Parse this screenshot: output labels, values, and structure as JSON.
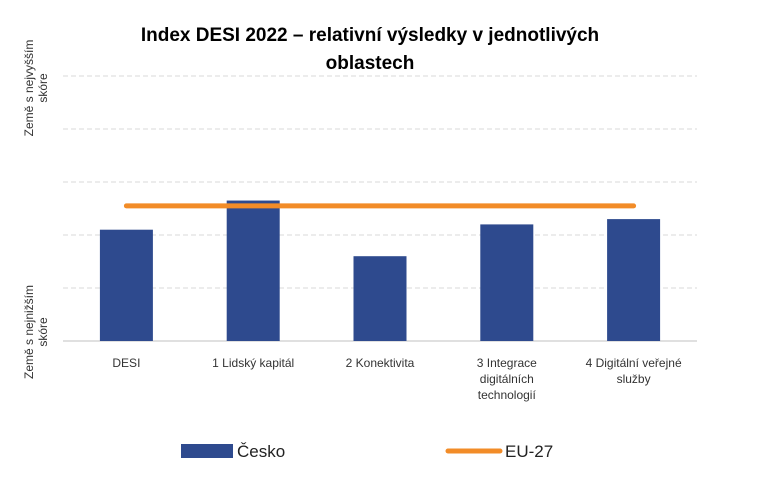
{
  "chart_data": {
    "type": "bar",
    "title_lines": [
      "Index DESI 2022 – relativní výsledky v jednotlivých",
      "oblastech"
    ],
    "ylabel_top": [
      "Země s nejvyšším",
      "skóre"
    ],
    "ylabel_bottom": [
      "Země s nejnižším",
      "skóre"
    ],
    "categories": [
      [
        "DESI"
      ],
      [
        "1 Lidský kapitál"
      ],
      [
        "2 Konektivita"
      ],
      [
        "3 Integrace",
        "digitálních",
        "technologií"
      ],
      [
        "4 Digitální veřejné",
        "služby"
      ]
    ],
    "ylim": [
      0,
      1
    ],
    "grid": true,
    "legend_position": "bottom",
    "series": [
      {
        "name": "Česko",
        "type": "bar",
        "color": "#2E4A8E",
        "values": [
          0.42,
          0.53,
          0.32,
          0.44,
          0.46
        ]
      },
      {
        "name": "EU-27",
        "type": "line",
        "color": "#F28C28",
        "values": [
          0.51,
          0.51,
          0.51,
          0.51,
          0.51
        ]
      }
    ]
  }
}
